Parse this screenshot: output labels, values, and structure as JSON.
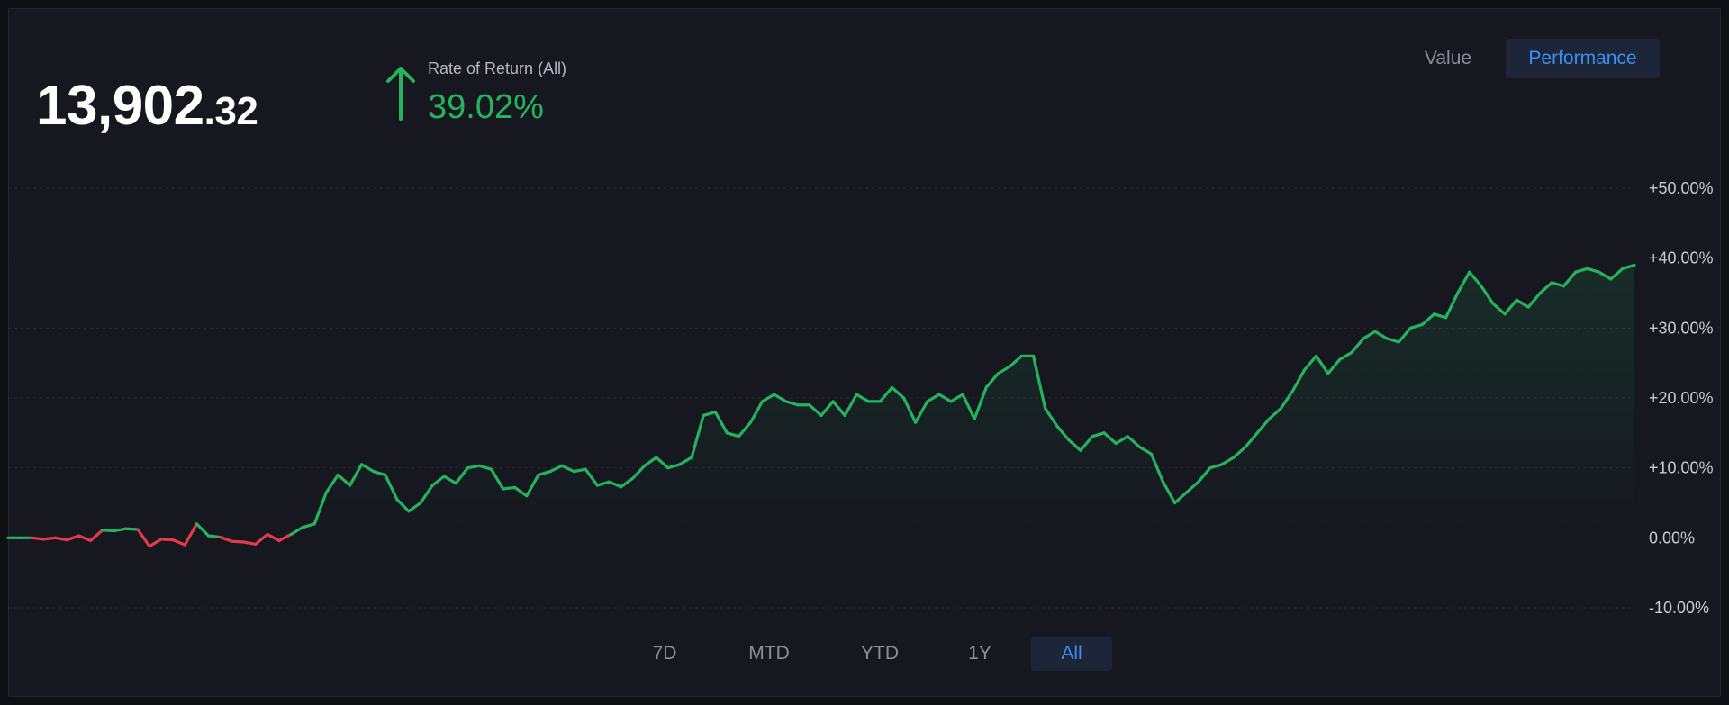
{
  "balance": {
    "integer": "13,902",
    "decimal": ".32"
  },
  "rate_of_return": {
    "label": "Rate of Return (All)",
    "value": "39.02%",
    "direction": "up",
    "icon": "arrow-up-icon"
  },
  "view_toggle": {
    "value_label": "Value",
    "performance_label": "Performance",
    "selected": "Performance"
  },
  "range_tabs": {
    "items": [
      "7D",
      "MTD",
      "YTD",
      "1Y",
      "All"
    ],
    "selected": "All"
  },
  "colors": {
    "background": "#16171f",
    "positive": "#25b35e",
    "negative": "#e23b4a",
    "accent": "#3b8ff0",
    "grid": "#2a2c35",
    "tick_text": "#c9ccd4"
  },
  "chart_data": {
    "type": "area",
    "title": "",
    "xlabel": "",
    "ylabel": "",
    "ylim": [
      -10,
      50
    ],
    "y_ticks": [
      "+50.00%",
      "+40.00%",
      "+30.00%",
      "+20.00%",
      "+10.00%",
      "0.00%",
      "-10.00%"
    ],
    "y_tick_values": [
      50,
      40,
      30,
      20,
      10,
      0,
      -10
    ],
    "grid": true,
    "series": [
      {
        "values": [
          0,
          0,
          0,
          -0.2,
          0,
          -0.3,
          0.3,
          -0.4,
          1.1,
          1.0,
          1.3,
          1.2,
          -1.2,
          -0.2,
          -0.3,
          -1.0,
          2.0,
          0.3,
          0.1,
          -0.5,
          -0.6,
          -0.9,
          0.5,
          -0.4,
          0.5,
          1.5,
          2.0,
          6.5,
          9.0,
          7.5,
          10.5,
          9.5,
          9.0,
          5.5,
          3.8,
          5.0,
          7.5,
          8.8,
          7.8,
          10.0,
          10.3,
          9.8,
          7.0,
          7.2,
          6.0,
          9.0,
          9.5,
          10.3,
          9.5,
          9.8,
          7.5,
          8.0,
          7.3,
          8.5,
          10.3,
          11.5,
          10.0,
          10.5,
          11.5,
          17.5,
          18.0,
          15.0,
          14.5,
          16.5,
          19.5,
          20.5,
          19.5,
          19.0,
          19.0,
          17.5,
          19.5,
          17.5,
          20.5,
          19.5,
          19.5,
          21.5,
          20.0,
          16.5,
          19.5,
          20.5,
          19.5,
          20.5,
          17.0,
          21.5,
          23.5,
          24.5,
          26.0,
          26.0,
          18.5,
          16.0,
          14.0,
          12.5,
          14.5,
          15.0,
          13.5,
          14.5,
          13.0,
          12.0,
          8.0,
          5.0,
          6.5,
          8.0,
          10.0,
          10.5,
          11.5,
          13.0,
          15.0,
          17.0,
          18.5,
          21.0,
          24.0,
          26.0,
          23.5,
          25.5,
          26.5,
          28.5,
          29.5,
          28.5,
          28.0,
          30.0,
          30.5,
          32.0,
          31.5,
          35.0,
          38.0,
          36.0,
          33.5,
          32.0,
          34.0,
          33.0,
          35.0,
          36.5,
          36.0,
          38.0,
          38.5,
          38.0,
          37.0,
          38.5,
          39.0
        ]
      }
    ]
  }
}
